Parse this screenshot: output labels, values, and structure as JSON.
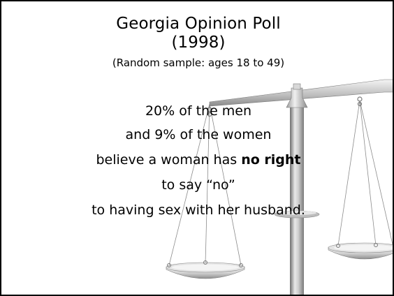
{
  "slide": {
    "title_line1": "Georgia Opinion Poll",
    "title_line2": "(1998)",
    "subtitle": "(Random sample:  ages 18 to 49)",
    "body": {
      "line1": "20% of the men",
      "line2": "and 9% of the women",
      "line3_part1": "believe a woman has ",
      "line3_emphasis": "no right",
      "line4": "to say “no”",
      "line5": "to having sex with her husband."
    }
  },
  "art": {
    "name": "balance-scale",
    "colors": {
      "metal_light": "#f2f2f2",
      "metal_mid": "#bdbdbd",
      "metal_dark": "#7a7a7a",
      "string": "#8c8c8c"
    }
  }
}
